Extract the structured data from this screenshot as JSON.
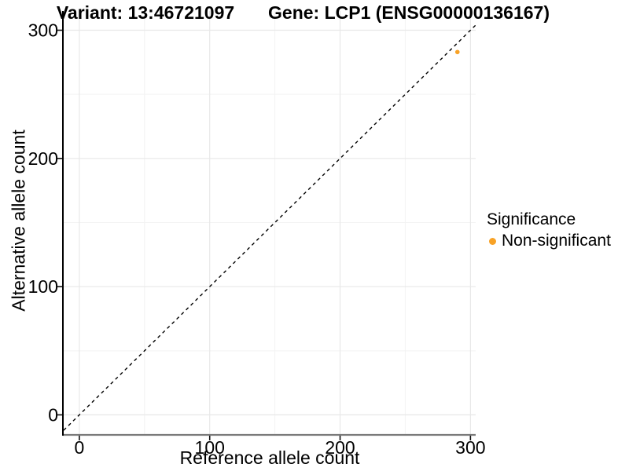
{
  "chart_data": {
    "type": "scatter",
    "titles": {
      "variant": "Variant: 13:46721097",
      "gene": "Gene: LCP1 (ENSG00000136167)"
    },
    "xlabel": "Reference allele count",
    "ylabel": "Alternative allele count",
    "xlim": [
      -12,
      304
    ],
    "ylim": [
      -15,
      315
    ],
    "x_ticks": [
      0,
      100,
      200,
      300
    ],
    "y_ticks": [
      0,
      100,
      200,
      300
    ],
    "x_minor": [
      50,
      150,
      250
    ],
    "y_minor": [
      50,
      150,
      250
    ],
    "grid": "on",
    "series": [
      {
        "name": "Non-significant",
        "color": "#F8A226",
        "points": [
          {
            "x": 290,
            "y": 283
          }
        ]
      }
    ],
    "reference_line": {
      "slope": 1,
      "intercept": 0,
      "style": "dashed",
      "color": "#000000"
    },
    "legend": {
      "title": "Significance",
      "position": "right",
      "entries": [
        {
          "label": "Non-significant",
          "color": "#F8A226"
        }
      ]
    }
  },
  "colors": {
    "grid_major": "#E8E8E8",
    "grid_minor": "#F3F3F3",
    "axis_line_bottom": "#7A7A7A",
    "axis_line_left": "#000000",
    "tick_mark": "#111111"
  }
}
